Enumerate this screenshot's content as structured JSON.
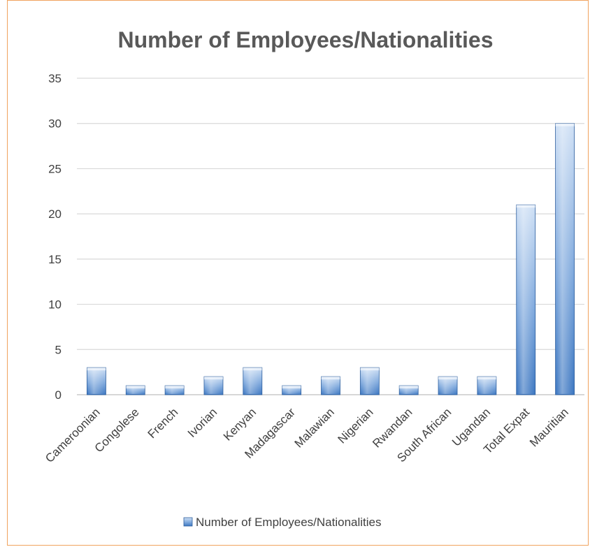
{
  "chart_data": {
    "type": "bar",
    "title": "Number of Employees/Nationalities",
    "xlabel": "",
    "ylabel": "",
    "categories": [
      "Cameroonian",
      "Congolese",
      "French",
      "Ivorian",
      "Kenyan",
      "Madagascar",
      "Malawian",
      "Nigerian",
      "Rwandan",
      "South African",
      "Ugandan",
      "Total Expat",
      "Mauritian"
    ],
    "series": [
      {
        "name": "Number of Employees/Nationalities",
        "values": [
          3,
          1,
          1,
          2,
          3,
          1,
          2,
          3,
          1,
          2,
          2,
          21,
          30
        ]
      }
    ],
    "ylim": [
      0,
      35
    ],
    "yticks": [
      0,
      5,
      10,
      15,
      20,
      25,
      30,
      35
    ],
    "grid": true,
    "legend_position": "bottom",
    "colors": {
      "bar_light": "#cfe0f5",
      "bar_mid": "#7fa9dd",
      "bar_dark": "#3e78c2",
      "bar_stroke": "#2e5f9e",
      "grid": "#d9d9d9",
      "axis": "#bfbfbf",
      "frame": "#f0a35e"
    }
  }
}
